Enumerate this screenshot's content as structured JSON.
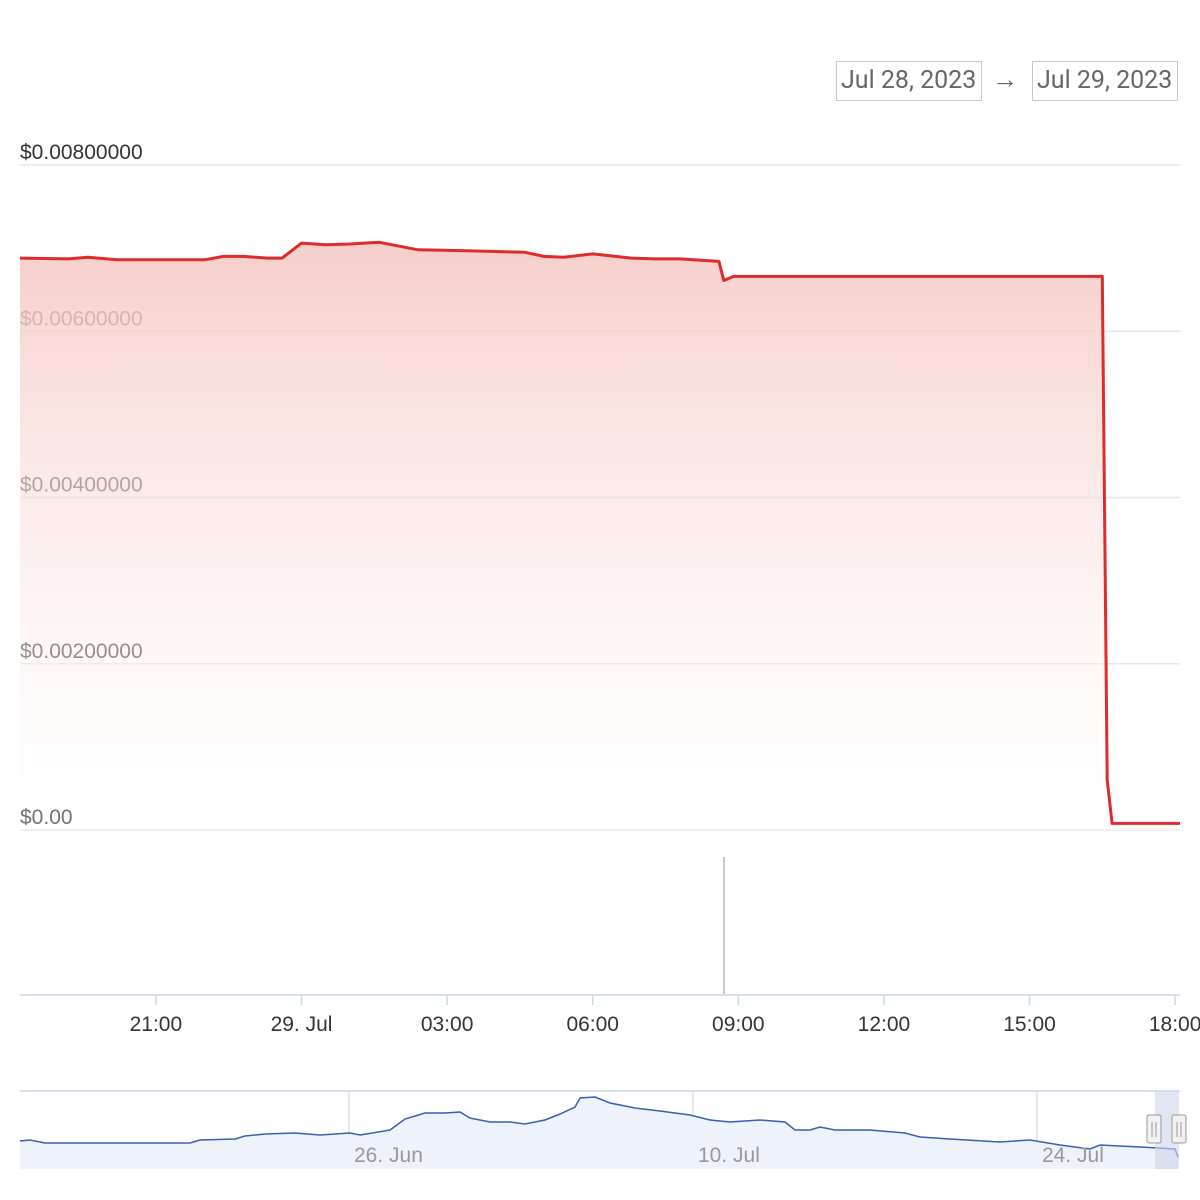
{
  "range_selector": {
    "from": "Jul 28, 2023",
    "arrow": "→",
    "to": "Jul 29, 2023"
  },
  "colors": {
    "price_line": "#e02b2b",
    "price_fill_top": "#f5c9c4",
    "navigator_line": "#3a5fb0",
    "navigator_fill": "#eef2fa",
    "navigator_mask": "#ccd6eb",
    "grid": "#e6e6e6"
  },
  "chart_data": {
    "type": "area",
    "yticks": [
      {
        "value": 0,
        "label": "$0.00"
      },
      {
        "value": 0.002,
        "label": "$0.00200000"
      },
      {
        "value": 0.004,
        "label": "$0.00400000"
      },
      {
        "value": 0.006,
        "label": "$0.00600000"
      },
      {
        "value": 0.008,
        "label": "$0.00800000"
      }
    ],
    "ylim": [
      0,
      0.008
    ],
    "xticks": [
      "21:00",
      "29. Jul",
      "03:00",
      "06:00",
      "09:00",
      "12:00",
      "15:00",
      "18:00"
    ],
    "x_unit": "hours from 2023-07-28 00:00",
    "xlim": [
      18.2,
      42.1
    ],
    "xtick_values": [
      21,
      24,
      27,
      30,
      33,
      36,
      39,
      42
    ],
    "series": [
      {
        "x": [
          18.2,
          19.2,
          19.6,
          20.2,
          21.2,
          22.0,
          22.4,
          22.8,
          23.3,
          23.6,
          24.0,
          24.5,
          25.0,
          25.6,
          26.4,
          27.3,
          28.0,
          28.6,
          29.0,
          29.4,
          30.0,
          30.8,
          31.3,
          31.8,
          32.6,
          32.7,
          32.9,
          34.0,
          35.0,
          37.0,
          39.0,
          40.5,
          40.6,
          40.7,
          41.0,
          41.5,
          42.1
        ],
        "y": [
          0.00688,
          0.00687,
          0.00689,
          0.00686,
          0.00686,
          0.00686,
          0.0069,
          0.0069,
          0.00688,
          0.00688,
          0.00706,
          0.00704,
          0.00705,
          0.00707,
          0.00698,
          0.00697,
          0.00696,
          0.00695,
          0.0069,
          0.00689,
          0.00693,
          0.00688,
          0.00687,
          0.00687,
          0.00684,
          0.00661,
          0.00666,
          0.00666,
          0.00666,
          0.00666,
          0.00666,
          0.00666,
          0.0006,
          8e-05,
          8e-05,
          8e-05,
          8e-05
        ]
      }
    ]
  },
  "navigator": {
    "labels": [
      "26. Jun",
      "10. Jul",
      "24. Jul"
    ]
  }
}
